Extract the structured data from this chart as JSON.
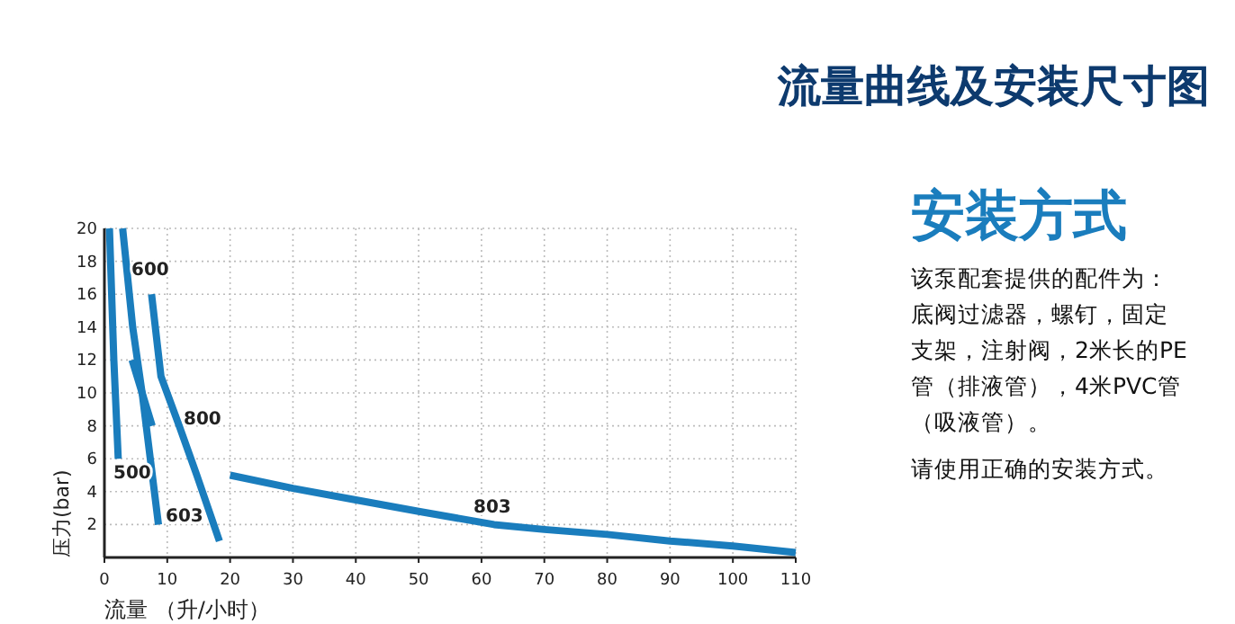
{
  "chart_data": [
    {
      "type": "line",
      "title": "流量曲线及安装尺寸图",
      "xlabel": "流量 （升/小时）",
      "ylabel": "压力(bar)",
      "xlim": [
        0,
        110
      ],
      "ylim": [
        0,
        20
      ],
      "xticks": [
        0,
        10,
        20,
        30,
        40,
        50,
        60,
        70,
        80,
        90,
        100,
        110
      ],
      "yticks": [
        2,
        4,
        6,
        8,
        10,
        12,
        14,
        16,
        18,
        20
      ],
      "grid": true,
      "marker": "none",
      "line_style": "solid",
      "series": [
        {
          "color": "#1a7dbd",
          "x": [
            0.8,
            1.5,
            2.2
          ],
          "values": [
            20,
            12,
            6
          ]
        },
        {
          "color": "#1a7dbd",
          "x": [
            2.9,
            4.5,
            6.0,
            7.3,
            8.6
          ],
          "values": [
            20,
            14,
            10,
            6,
            2
          ]
        },
        {
          "color": "#1a7dbd",
          "x": [
            4.4,
            6.0,
            7.6
          ],
          "values": [
            12,
            10,
            8
          ]
        },
        {
          "color": "#1a7dbd",
          "x": [
            7.5,
            9.0,
            11.9,
            14.7,
            18.3
          ],
          "values": [
            16,
            11,
            8,
            5,
            1
          ]
        },
        {
          "color": "#1a7dbd",
          "x": [
            20,
            30,
            40,
            50,
            62,
            70,
            80,
            90,
            100,
            110
          ],
          "values": [
            5,
            4.2,
            3.5,
            2.8,
            2,
            1.7,
            1.4,
            1.0,
            0.7,
            0.3
          ]
        }
      ],
      "annotations": [
        "500",
        "600",
        "800",
        "603",
        "803"
      ]
    },
    {
      "type": "other",
      "title": "安装方式",
      "annotations": [
        "该泵配套提供的配件为：底阀过滤器，螺钉，固定支架，注射阀，2米长的PE管（排液管），4米PVC管（吸液管）。",
        "请使用正确的安装方式。"
      ]
    }
  ]
}
